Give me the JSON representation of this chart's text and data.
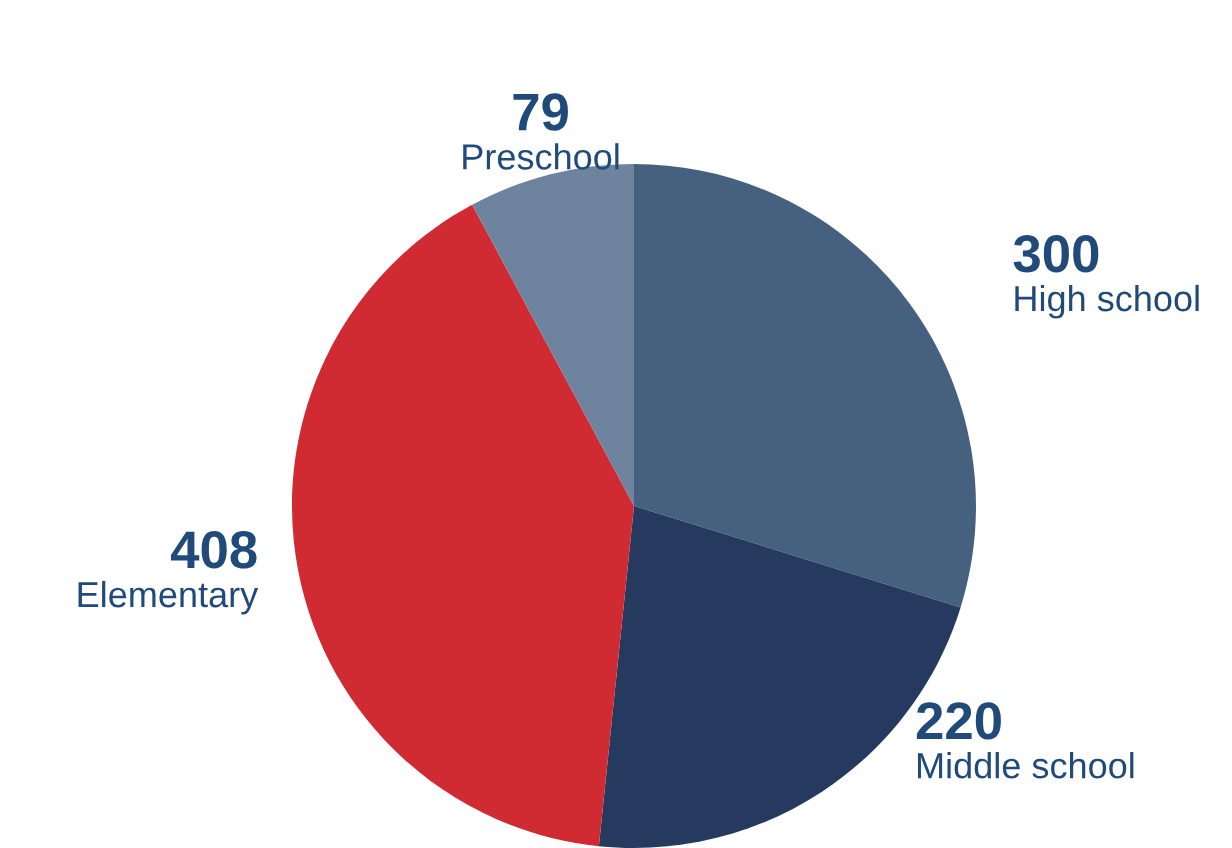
{
  "chart_data": {
    "type": "pie",
    "categories": [
      "High school",
      "Middle school",
      "Elementary",
      "Preschool"
    ],
    "values": [
      300,
      220,
      408,
      79
    ],
    "colors": [
      "#46617f",
      "#263a5f",
      "#d02b33",
      "#6e849e"
    ],
    "data_labels": true
  }
}
